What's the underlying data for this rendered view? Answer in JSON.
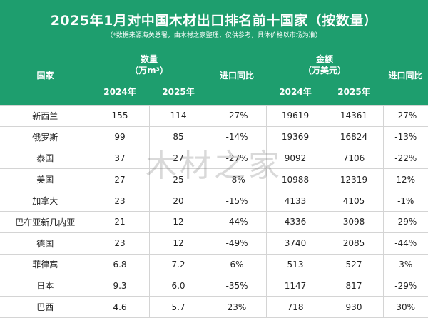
{
  "title": "2025年1月对中国木材出口排名前十国家（按数量）",
  "note": "（*数据来源海关总署，由木材之家整理，仅供参考，具体价格以市场为准）",
  "watermark": "木材之家",
  "headers": {
    "country": "国家",
    "quantity": "数量",
    "quantity_unit": "（万m³）",
    "quantity_yoy": "进口同比",
    "amount": "金额",
    "amount_unit": "（万美元）",
    "amount_yoy": "进口同比",
    "year_2024": "2024年",
    "year_2025": "2025年"
  },
  "colors": {
    "header_bg": "#1e9e6e",
    "decrease": "#1aa36b",
    "increase": "#e0141e"
  },
  "rows": [
    {
      "country": "新西兰",
      "q2024": "155",
      "q2025": "114",
      "q_yoy": "-27%",
      "a2024": "19619",
      "a2025": "14361",
      "a_yoy": "-27%"
    },
    {
      "country": "俄罗斯",
      "q2024": "99",
      "q2025": "85",
      "q_yoy": "-14%",
      "a2024": "19369",
      "a2025": "16824",
      "a_yoy": "-13%"
    },
    {
      "country": "泰国",
      "q2024": "37",
      "q2025": "27",
      "q_yoy": "-27%",
      "a2024": "9092",
      "a2025": "7106",
      "a_yoy": "-22%"
    },
    {
      "country": "美国",
      "q2024": "27",
      "q2025": "25",
      "q_yoy": "-8%",
      "a2024": "10988",
      "a2025": "12319",
      "a_yoy": "12%"
    },
    {
      "country": "加拿大",
      "q2024": "23",
      "q2025": "20",
      "q_yoy": "-15%",
      "a2024": "4133",
      "a2025": "4105",
      "a_yoy": "-1%"
    },
    {
      "country": "巴布亚新几内亚",
      "q2024": "21",
      "q2025": "12",
      "q_yoy": "-44%",
      "a2024": "4336",
      "a2025": "3098",
      "a_yoy": "-29%"
    },
    {
      "country": "德国",
      "q2024": "23",
      "q2025": "12",
      "q_yoy": "-49%",
      "a2024": "3740",
      "a2025": "2085",
      "a_yoy": "-44%"
    },
    {
      "country": "菲律宾",
      "q2024": "6.8",
      "q2025": "7.2",
      "q_yoy": "6%",
      "a2024": "513",
      "a2025": "527",
      "a_yoy": "3%"
    },
    {
      "country": "日本",
      "q2024": "9.3",
      "q2025": "6.0",
      "q_yoy": "-35%",
      "a2024": "1147",
      "a2025": "817",
      "a_yoy": "-29%"
    },
    {
      "country": "巴西",
      "q2024": "4.6",
      "q2025": "5.7",
      "q_yoy": "23%",
      "a2024": "718",
      "a2025": "930",
      "a_yoy": "30%"
    }
  ]
}
